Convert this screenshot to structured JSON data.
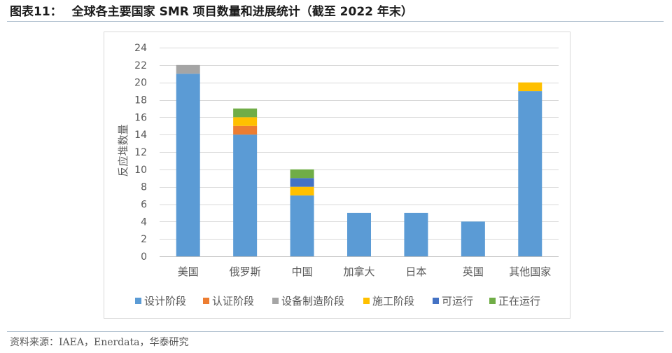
{
  "header": {
    "figure_label": "图表11："
  },
  "chart_data": {
    "type": "bar",
    "stacked": true,
    "title": "全球各主要国家 SMR 项目数量和进展统计（截至 2022 年末）",
    "xlabel": "",
    "ylabel": "反应堆数量",
    "ylim": [
      0,
      24
    ],
    "yticks": [
      0,
      2,
      4,
      6,
      8,
      10,
      12,
      14,
      16,
      18,
      20,
      22,
      24
    ],
    "grid": true,
    "legend_position": "bottom",
    "categories": [
      "美国",
      "俄罗斯",
      "中国",
      "加拿大",
      "日本",
      "英国",
      "其他国家"
    ],
    "series": [
      {
        "name": "设计阶段",
        "color": "#5B9BD5",
        "values": [
          21,
          14,
          7,
          5,
          5,
          4,
          19
        ]
      },
      {
        "name": "认证阶段",
        "color": "#ED7D31",
        "values": [
          0,
          1,
          0,
          0,
          0,
          0,
          0
        ]
      },
      {
        "name": "设备制造阶段",
        "color": "#A5A5A5",
        "values": [
          1,
          0,
          0,
          0,
          0,
          0,
          0
        ]
      },
      {
        "name": "施工阶段",
        "color": "#FFC000",
        "values": [
          0,
          1,
          1,
          0,
          0,
          0,
          1
        ]
      },
      {
        "name": "可运行",
        "color": "#4472C4",
        "values": [
          0,
          0,
          1,
          0,
          0,
          0,
          0
        ]
      },
      {
        "name": "正在运行",
        "color": "#70AD47",
        "values": [
          0,
          1,
          1,
          0,
          0,
          0,
          0
        ]
      }
    ]
  },
  "footer": {
    "source": "资料来源：IAEA，Enerdata，华泰研究"
  }
}
